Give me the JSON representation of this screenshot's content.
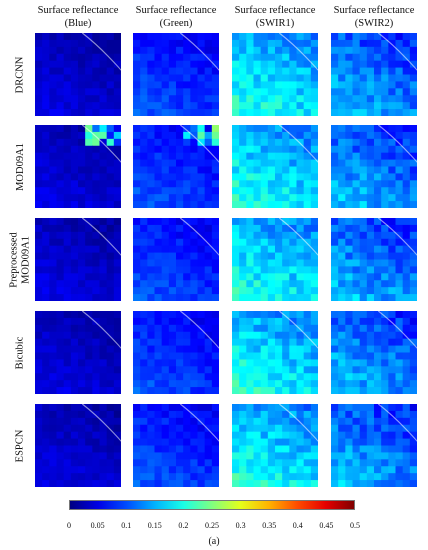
{
  "column_headers": [
    "Surface reflectance\n(Blue)",
    "Surface reflectance\n(Green)",
    "Surface reflectance\n(SWIR1)",
    "Surface reflectance\n(SWIR2)"
  ],
  "column_header_lines": [
    [
      "Surface reflectance",
      "(Blue)"
    ],
    [
      "Surface reflectance",
      "(Green)"
    ],
    [
      "Surface reflectance",
      "(SWIR1)"
    ],
    [
      "Surface reflectance",
      "(SWIR2)"
    ]
  ],
  "row_labels": [
    "DRCNN",
    "MOD09A1",
    "Preprocessed\nMOD09A1",
    "Bicubic",
    "ESPCN"
  ],
  "row_label_lines": [
    [
      "DRCNN"
    ],
    [
      "MOD09A1"
    ],
    [
      "Preprocessed",
      "MOD09A1"
    ],
    [
      "Bicubic"
    ],
    [
      "ESPCN"
    ]
  ],
  "colorbar": {
    "min": 0,
    "max": 0.5,
    "colormap": "jet",
    "tick_labels": [
      "0",
      "0.05",
      "0.1",
      "0.15",
      "0.2",
      "0.25",
      "0.3",
      "0.35",
      "0.4",
      "0.45",
      "0.5"
    ]
  },
  "caption": "(a)"
}
